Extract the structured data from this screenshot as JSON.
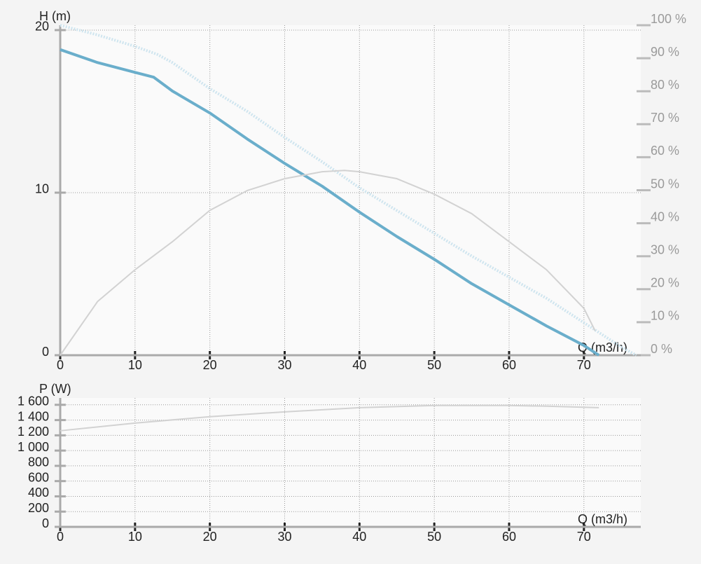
{
  "chart_data": [
    {
      "type": "line",
      "x_label": "Q (m3/h)",
      "y_label": "H (m)",
      "xlim": [
        0,
        77.6
      ],
      "xticks": [
        0,
        10,
        20,
        30,
        40,
        50,
        60,
        70
      ],
      "ylim": [
        0,
        20.3
      ],
      "yticks": [
        0,
        10,
        20
      ],
      "y2lim": [
        0,
        100
      ],
      "y2ticks": [
        {
          "value": 0,
          "label": "0 %"
        },
        {
          "value": 10,
          "label": "10 %"
        },
        {
          "value": 20,
          "label": "20 %"
        },
        {
          "value": 30,
          "label": "30 %"
        },
        {
          "value": 40,
          "label": "40 %"
        },
        {
          "value": 50,
          "label": "50 %"
        },
        {
          "value": 60,
          "label": "60 %"
        },
        {
          "value": 70,
          "label": "70 %"
        },
        {
          "value": 80,
          "label": "80 %"
        },
        {
          "value": 90,
          "label": "90 %"
        },
        {
          "value": 100,
          "label": "100 %"
        }
      ],
      "grid": true,
      "series": [
        {
          "color": "#6aaecb",
          "linestyle": "solid",
          "x": [
            0,
            5,
            10,
            12.5,
            15,
            20,
            25,
            30,
            35,
            40,
            45,
            50,
            55,
            60,
            65,
            70,
            72
          ],
          "values": [
            18.8,
            18.0,
            17.4,
            17.1,
            16.25,
            14.9,
            13.3,
            11.8,
            10.4,
            8.8,
            7.3,
            5.9,
            4.4,
            3.1,
            1.8,
            0.6,
            0
          ]
        },
        {
          "color": "#cfe5ef",
          "linestyle": "dotted",
          "x": [
            0,
            5,
            10,
            13,
            15,
            20,
            25,
            30,
            35,
            40,
            45,
            50,
            55,
            60,
            65,
            70,
            75,
            77
          ],
          "values": [
            20.3,
            19.7,
            19.0,
            18.5,
            18.0,
            16.4,
            15.0,
            13.4,
            11.9,
            10.3,
            8.9,
            7.5,
            6.1,
            4.8,
            3.5,
            2.0,
            0.5,
            0
          ]
        },
        {
          "color": "#d2d2d2",
          "linestyle": "solid",
          "axis": "y2",
          "x": [
            0,
            5,
            10,
            15,
            20,
            25,
            30,
            35,
            38,
            40,
            45,
            50,
            55,
            60,
            65,
            70,
            71.5
          ],
          "values": [
            0,
            16.3,
            25.9,
            34.4,
            43.9,
            49.9,
            53.5,
            55.6,
            56,
            55.6,
            53.5,
            48.8,
            42.9,
            34.4,
            25.9,
            14.2,
            7.4
          ]
        }
      ]
    },
    {
      "type": "line",
      "x_label": "Q (m3/h)",
      "y_label": "P (W)",
      "xlim": [
        0,
        77.6
      ],
      "xticks": [
        0,
        10,
        20,
        30,
        40,
        50,
        60,
        70
      ],
      "ylim": [
        0,
        1690
      ],
      "yticks": [
        0,
        200,
        400,
        600,
        800,
        {
          "value": 1000,
          "label": "1 000"
        },
        {
          "value": 1200,
          "label": "1 200"
        },
        {
          "value": 1400,
          "label": "1 400"
        },
        {
          "value": 1600,
          "label": "1 600"
        }
      ],
      "grid": true,
      "series": [
        {
          "color": "#d2d2d2",
          "linestyle": "solid",
          "x": [
            0,
            10,
            20,
            30,
            40,
            50,
            60,
            65,
            72
          ],
          "values": [
            1260,
            1361,
            1444,
            1508,
            1563,
            1591,
            1591,
            1582,
            1563
          ]
        }
      ]
    }
  ]
}
